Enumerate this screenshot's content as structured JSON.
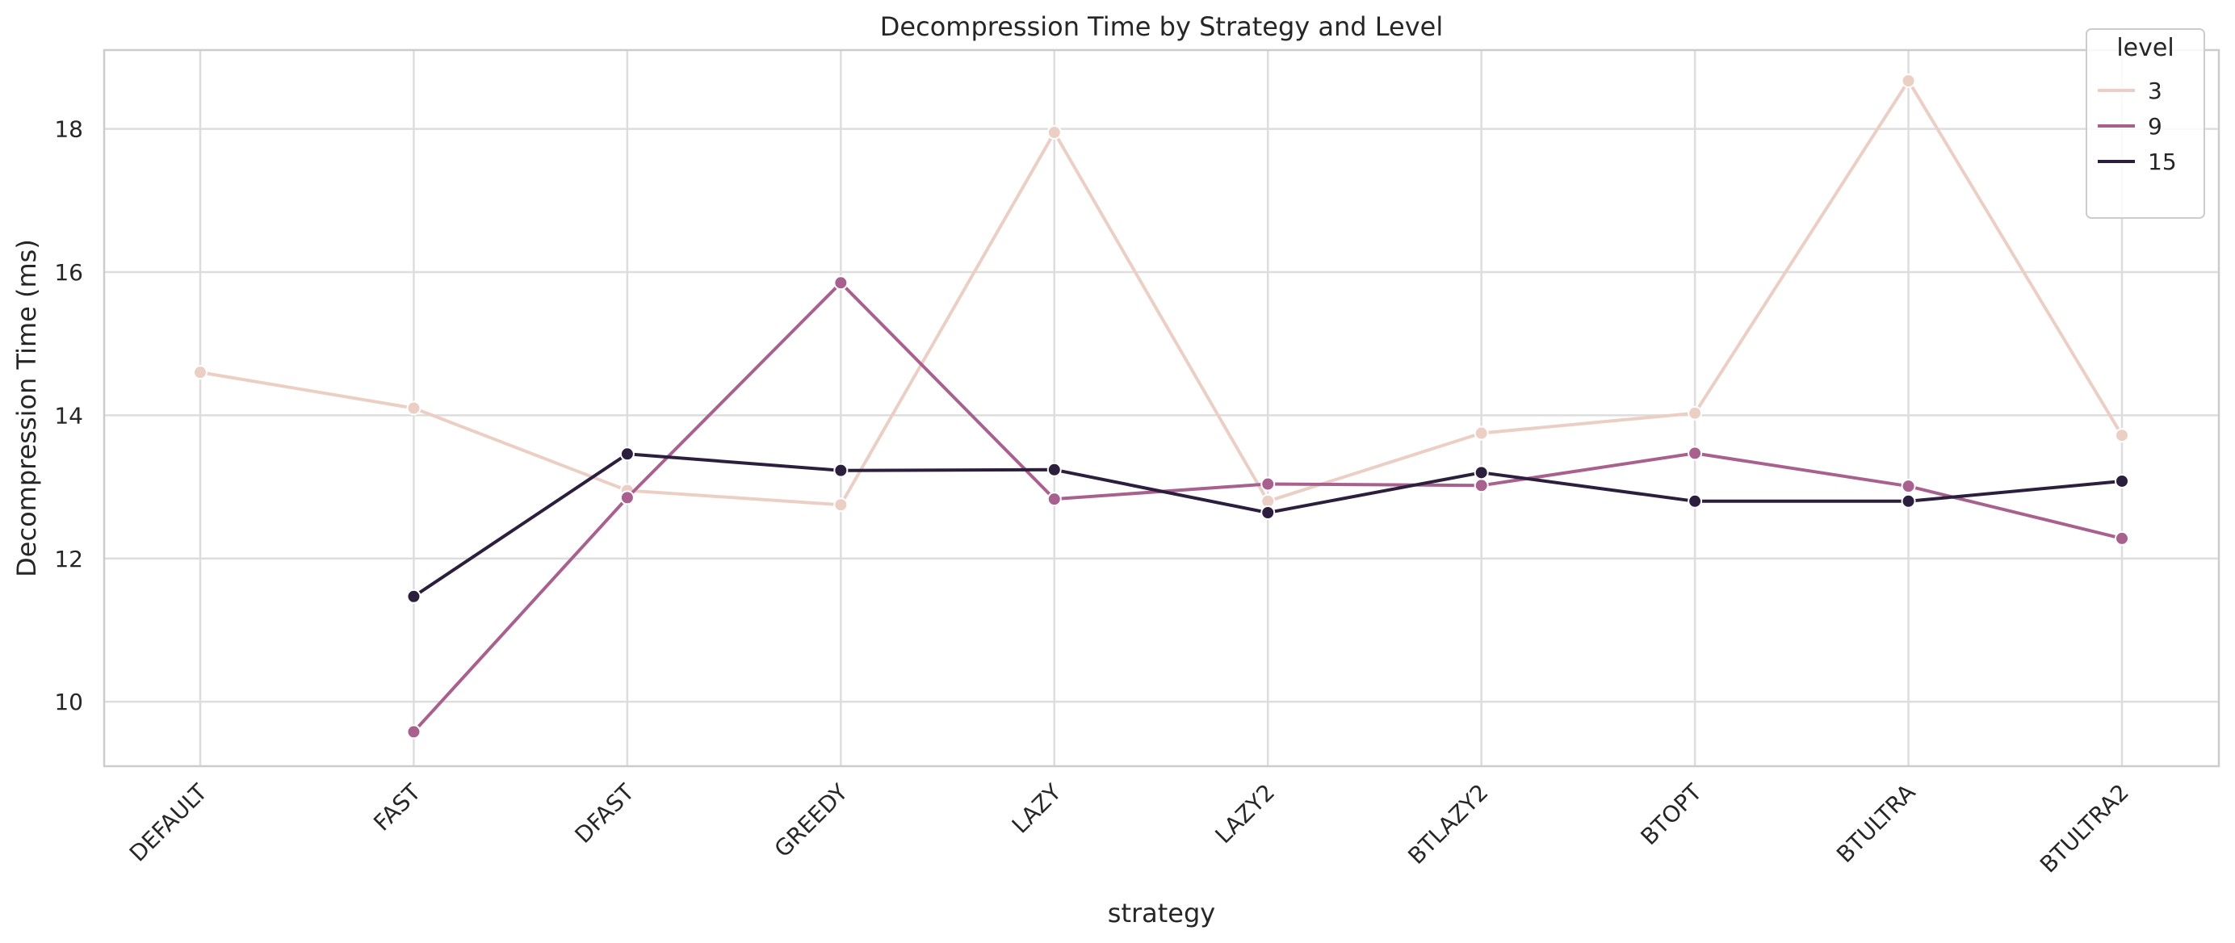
{
  "chart_data": {
    "type": "line",
    "title": "Decompression Time by Strategy and Level",
    "xlabel": "strategy",
    "ylabel": "Decompression Time (ms)",
    "categories": [
      "DEFAULT",
      "FAST",
      "DFAST",
      "GREEDY",
      "LAZY",
      "LAZY2",
      "BTLAZY2",
      "BTOPT",
      "BTULTRA",
      "BTULTRA2"
    ],
    "ylim": [
      9.1,
      19.1
    ],
    "yticks": [
      10,
      12,
      14,
      16,
      18
    ],
    "grid": true,
    "legend": {
      "title": "level",
      "placement": "top-right"
    },
    "series": [
      {
        "name": "3",
        "color": "#ebcfc4",
        "values": [
          14.6,
          14.1,
          12.95,
          12.75,
          17.95,
          12.8,
          13.75,
          14.03,
          18.67,
          13.72
        ]
      },
      {
        "name": "9",
        "color": "#a8618e",
        "values": [
          null,
          9.58,
          12.85,
          15.85,
          12.83,
          13.04,
          13.02,
          13.47,
          13.01,
          12.28
        ]
      },
      {
        "name": "15",
        "color": "#2c1e3d",
        "values": [
          null,
          11.47,
          13.46,
          13.23,
          13.24,
          12.64,
          13.2,
          12.8,
          12.8,
          13.08
        ]
      }
    ]
  }
}
